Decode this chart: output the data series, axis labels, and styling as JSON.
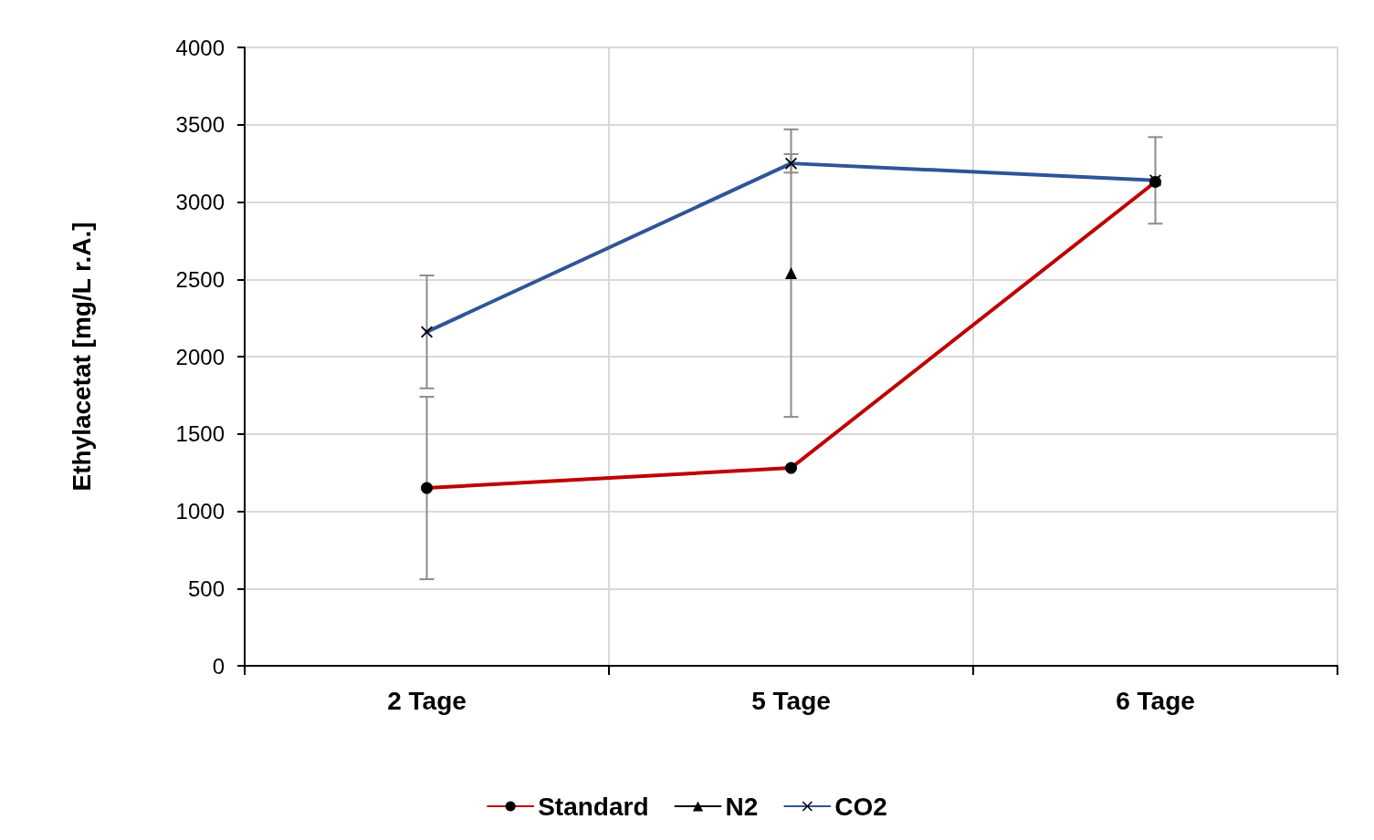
{
  "chart_data": {
    "type": "line",
    "ylabel": "Ethylacetat [mg/L r.A.]",
    "categories": [
      "2 Tage",
      "5 Tage",
      "6 Tage"
    ],
    "series": [
      {
        "name": "Standard",
        "color": "#c00000",
        "marker": "circle",
        "values": [
          1150,
          1280,
          3130
        ],
        "errors": [
          590,
          null,
          null
        ]
      },
      {
        "name": "N2",
        "color": "#000000",
        "marker": "triangle",
        "values": [
          null,
          2540,
          null
        ],
        "errors": [
          null,
          930,
          null
        ]
      },
      {
        "name": "CO2",
        "color": "#2f5597",
        "marker": "cross",
        "values": [
          2160,
          3250,
          3140
        ],
        "errors": [
          365,
          60,
          280
        ]
      }
    ],
    "ylim": [
      0,
      4000
    ],
    "yticks": [
      0,
      500,
      1000,
      1500,
      2000,
      2500,
      3000,
      3500,
      4000
    ],
    "grid": true,
    "legend": "bottom"
  }
}
